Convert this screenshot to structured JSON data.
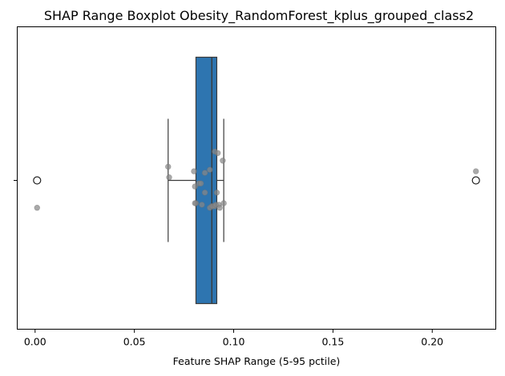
{
  "chart_data": {
    "type": "boxplot",
    "title": "SHAP Range Boxplot Obesity_RandomForest_kplus_grouped_class2",
    "xlabel": "Feature SHAP Range (5-95 pctile)",
    "ylabel": "",
    "xlim": [
      -0.009,
      0.232
    ],
    "xticks": [
      0.0,
      0.05,
      0.1,
      0.15,
      0.2
    ],
    "xtick_labels": [
      "0.00",
      "0.05",
      "0.10",
      "0.15",
      "0.20"
    ],
    "grid": false,
    "box": {
      "whisker_low": 0.067,
      "q1": 0.081,
      "median": 0.089,
      "q3": 0.0915,
      "whisker_high": 0.095,
      "outliers": [
        0.001,
        0.222
      ]
    },
    "strip_points": [
      {
        "x": 0.001,
        "jitter": -0.18
      },
      {
        "x": 0.067,
        "jitter": 0.09
      },
      {
        "x": 0.0675,
        "jitter": 0.02
      },
      {
        "x": 0.08,
        "jitter": 0.06
      },
      {
        "x": 0.0805,
        "jitter": -0.04
      },
      {
        "x": 0.081,
        "jitter": -0.15
      },
      {
        "x": 0.0805,
        "jitter": -0.15
      },
      {
        "x": 0.0825,
        "jitter": -0.02
      },
      {
        "x": 0.0835,
        "jitter": -0.02
      },
      {
        "x": 0.084,
        "jitter": -0.16
      },
      {
        "x": 0.0855,
        "jitter": 0.05
      },
      {
        "x": 0.0855,
        "jitter": -0.08
      },
      {
        "x": 0.088,
        "jitter": 0.07
      },
      {
        "x": 0.088,
        "jitter": -0.18
      },
      {
        "x": 0.089,
        "jitter": -0.17
      },
      {
        "x": 0.0895,
        "jitter": -0.17
      },
      {
        "x": 0.0905,
        "jitter": 0.19
      },
      {
        "x": 0.0905,
        "jitter": -0.17
      },
      {
        "x": 0.0915,
        "jitter": -0.08
      },
      {
        "x": 0.091,
        "jitter": -0.16
      },
      {
        "x": 0.092,
        "jitter": 0.18
      },
      {
        "x": 0.0925,
        "jitter": -0.16
      },
      {
        "x": 0.093,
        "jitter": -0.18
      },
      {
        "x": 0.0945,
        "jitter": 0.13
      },
      {
        "x": 0.095,
        "jitter": -0.15
      },
      {
        "x": 0.222,
        "jitter": 0.06
      }
    ],
    "colors": {
      "box": "#2e75b0",
      "box_edge": "#3b3b3b",
      "strip": "#888888"
    }
  }
}
